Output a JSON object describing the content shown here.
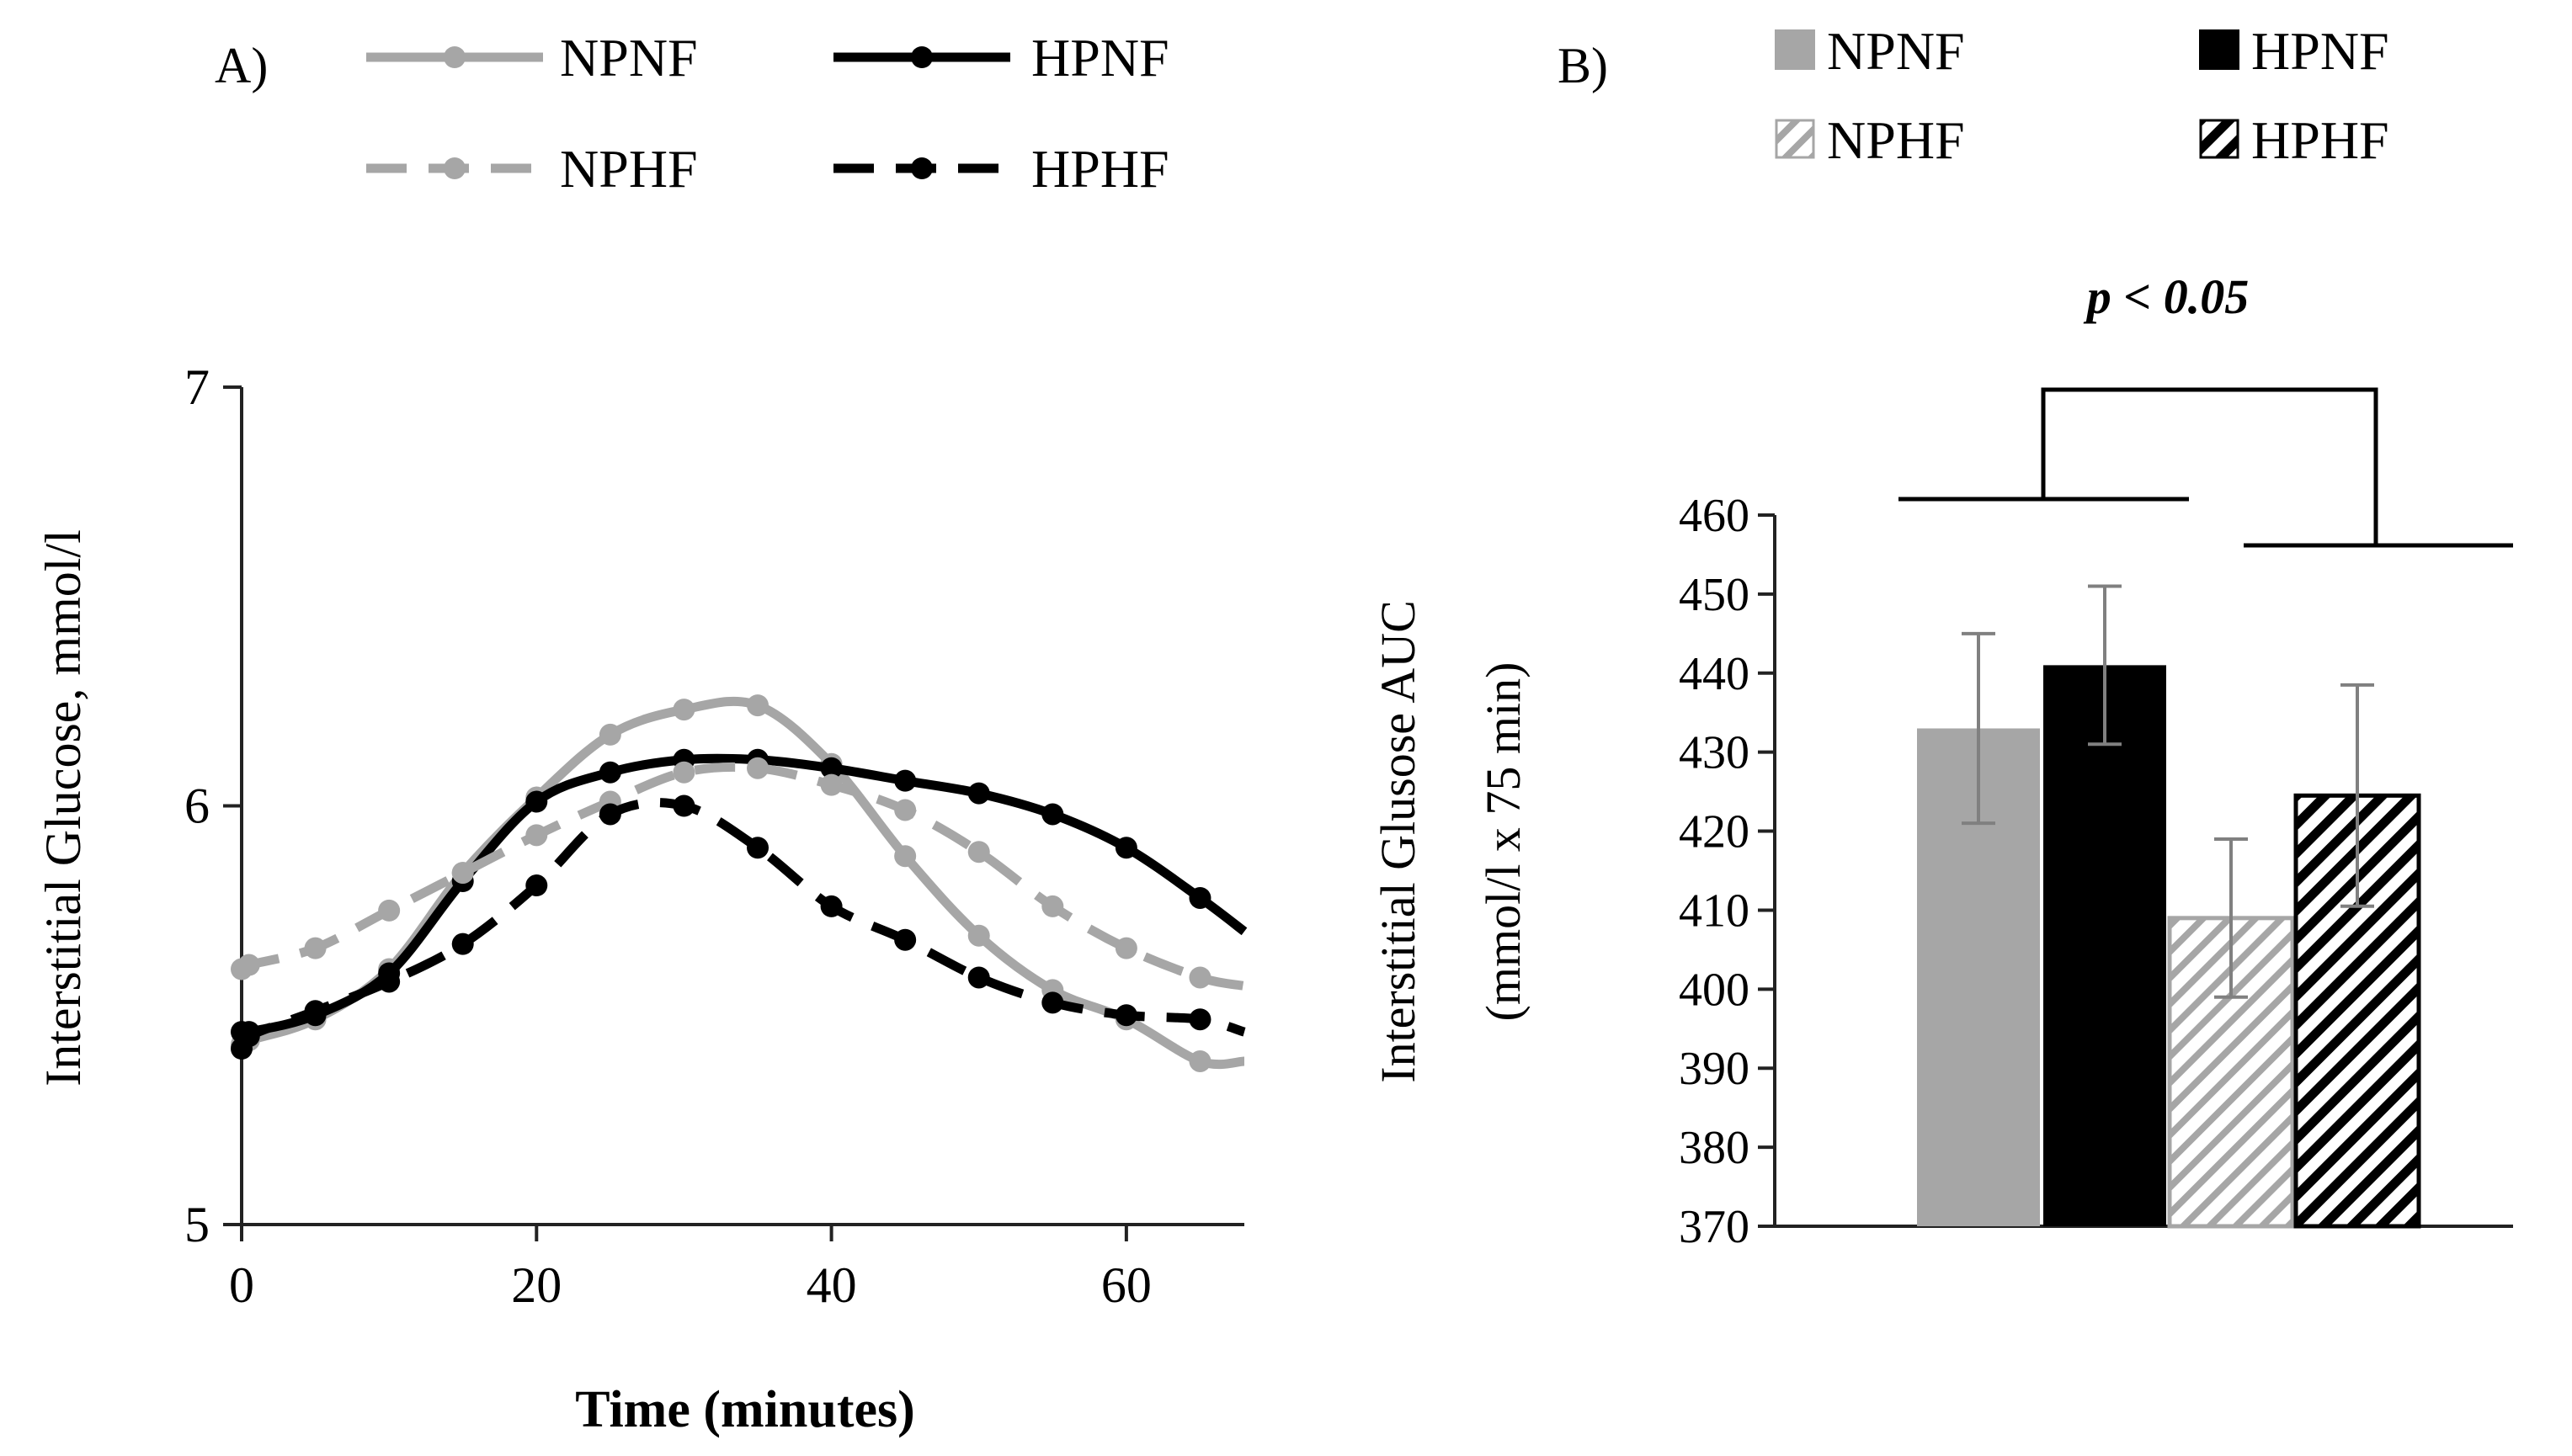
{
  "panel_a": {
    "label": "A)",
    "legend": [
      "NPNF",
      "HPNF",
      "NPHF",
      "HPHF"
    ]
  },
  "panel_b": {
    "label": "B)",
    "legend": [
      "NPNF",
      "HPNF",
      "NPHF",
      "HPHF"
    ],
    "significance": "p < 0.05"
  },
  "colors": {
    "light_gray": "#a6a6a6",
    "black": "#000000",
    "axis": "#222222"
  },
  "chart_data": [
    {
      "type": "line",
      "panel": "A",
      "title": "",
      "xlabel": "Time (minutes)",
      "ylabel": "Interstitial Glucose, mmol/l",
      "xlim": [
        0,
        68
      ],
      "ylim": [
        5,
        7
      ],
      "xticks": [
        0,
        20,
        40,
        60
      ],
      "yticks": [
        5,
        6,
        7
      ],
      "grid": false,
      "legend_position": "top",
      "series": [
        {
          "name": "NPNF",
          "color": "#a6a6a6",
          "dash": "solid",
          "x": [
            0,
            0.5,
            5,
            10,
            15,
            20,
            25,
            30,
            35,
            40,
            45,
            50,
            55,
            60,
            65,
            68
          ],
          "y": [
            5.43,
            5.44,
            5.49,
            5.61,
            5.84,
            6.02,
            6.17,
            6.23,
            6.24,
            6.1,
            5.88,
            5.69,
            5.56,
            5.49,
            5.39,
            5.39
          ]
        },
        {
          "name": "HPNF",
          "color": "#000000",
          "dash": "solid",
          "x": [
            0,
            0.5,
            5,
            10,
            15,
            20,
            25,
            30,
            35,
            40,
            45,
            50,
            55,
            60,
            65,
            68
          ],
          "y": [
            5.46,
            5.46,
            5.5,
            5.6,
            5.82,
            6.01,
            6.08,
            6.11,
            6.11,
            6.09,
            6.06,
            6.03,
            5.98,
            5.9,
            5.78,
            5.7
          ]
        },
        {
          "name": "NPHF",
          "color": "#a6a6a6",
          "dash": "dashed",
          "x": [
            0,
            0.5,
            5,
            10,
            15,
            20,
            25,
            30,
            35,
            40,
            45,
            50,
            55,
            60,
            65,
            68
          ],
          "y": [
            5.61,
            5.62,
            5.66,
            5.75,
            5.84,
            5.93,
            6.01,
            6.08,
            6.09,
            6.05,
            5.99,
            5.89,
            5.76,
            5.66,
            5.59,
            5.57
          ]
        },
        {
          "name": "HPHF",
          "color": "#000000",
          "dash": "dashed",
          "x": [
            0,
            0.5,
            5,
            10,
            15,
            20,
            25,
            30,
            35,
            40,
            45,
            50,
            55,
            60,
            65,
            68
          ],
          "y": [
            5.42,
            5.45,
            5.51,
            5.58,
            5.67,
            5.81,
            5.98,
            6.0,
            5.9,
            5.76,
            5.68,
            5.59,
            5.53,
            5.5,
            5.49,
            5.46
          ]
        }
      ]
    },
    {
      "type": "bar",
      "panel": "B",
      "title": "",
      "xlabel": "",
      "ylabel": "Interstitial Glusose AUC",
      "ylabel2": "(mmol/l x 75 min)",
      "ylim": [
        370,
        460
      ],
      "yticks": [
        370,
        380,
        390,
        400,
        410,
        420,
        430,
        440,
        450,
        460
      ],
      "grid": false,
      "legend_position": "top",
      "categories": [
        "NPNF",
        "HPNF",
        "NPHF",
        "HPHF"
      ],
      "values": [
        433,
        441,
        409,
        424.5
      ],
      "error": [
        12,
        10,
        10,
        14
      ],
      "fills": [
        "light_gray_solid",
        "black_solid",
        "light_gray_hatched",
        "black_hatched"
      ]
    }
  ]
}
